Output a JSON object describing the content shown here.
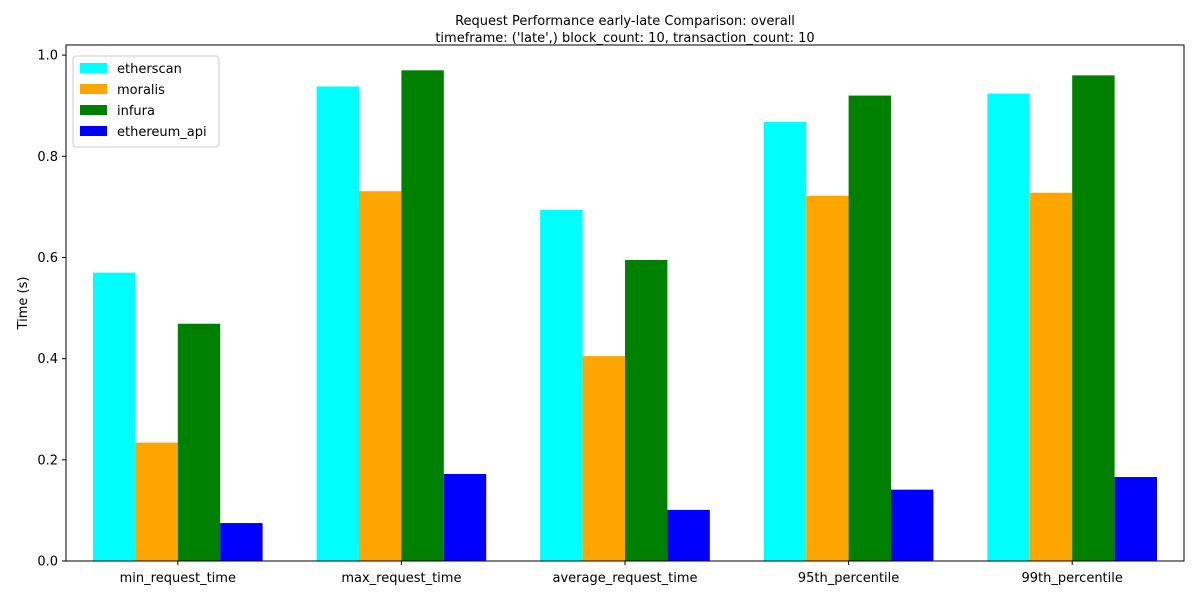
{
  "chart_data": {
    "type": "bar",
    "title": "Request Performance early-late Comparison: overall",
    "subtitle": "timeframe: ('late',) block_count: 10, transaction_count: 10",
    "xlabel": "",
    "ylabel": "Time (s)",
    "ylim": [
      0,
      1.02
    ],
    "yticks": [
      "0.0",
      "0.2",
      "0.4",
      "0.6",
      "0.8",
      "1.0"
    ],
    "grid": false,
    "legend_position": "top-left",
    "categories": [
      "min_request_time",
      "max_request_time",
      "average_request_time",
      "95th_percentile",
      "99th_percentile"
    ],
    "series": [
      {
        "name": "etherscan",
        "color": "#00ffff",
        "values": [
          0.57,
          0.938,
          0.694,
          0.868,
          0.924
        ]
      },
      {
        "name": "moralis",
        "color": "#ffa500",
        "values": [
          0.234,
          0.731,
          0.405,
          0.722,
          0.728
        ]
      },
      {
        "name": "infura",
        "color": "#008000",
        "values": [
          0.469,
          0.97,
          0.595,
          0.92,
          0.96
        ]
      },
      {
        "name": "ethereum_api",
        "color": "#0000ff",
        "values": [
          0.075,
          0.172,
          0.101,
          0.141,
          0.166
        ]
      }
    ]
  }
}
